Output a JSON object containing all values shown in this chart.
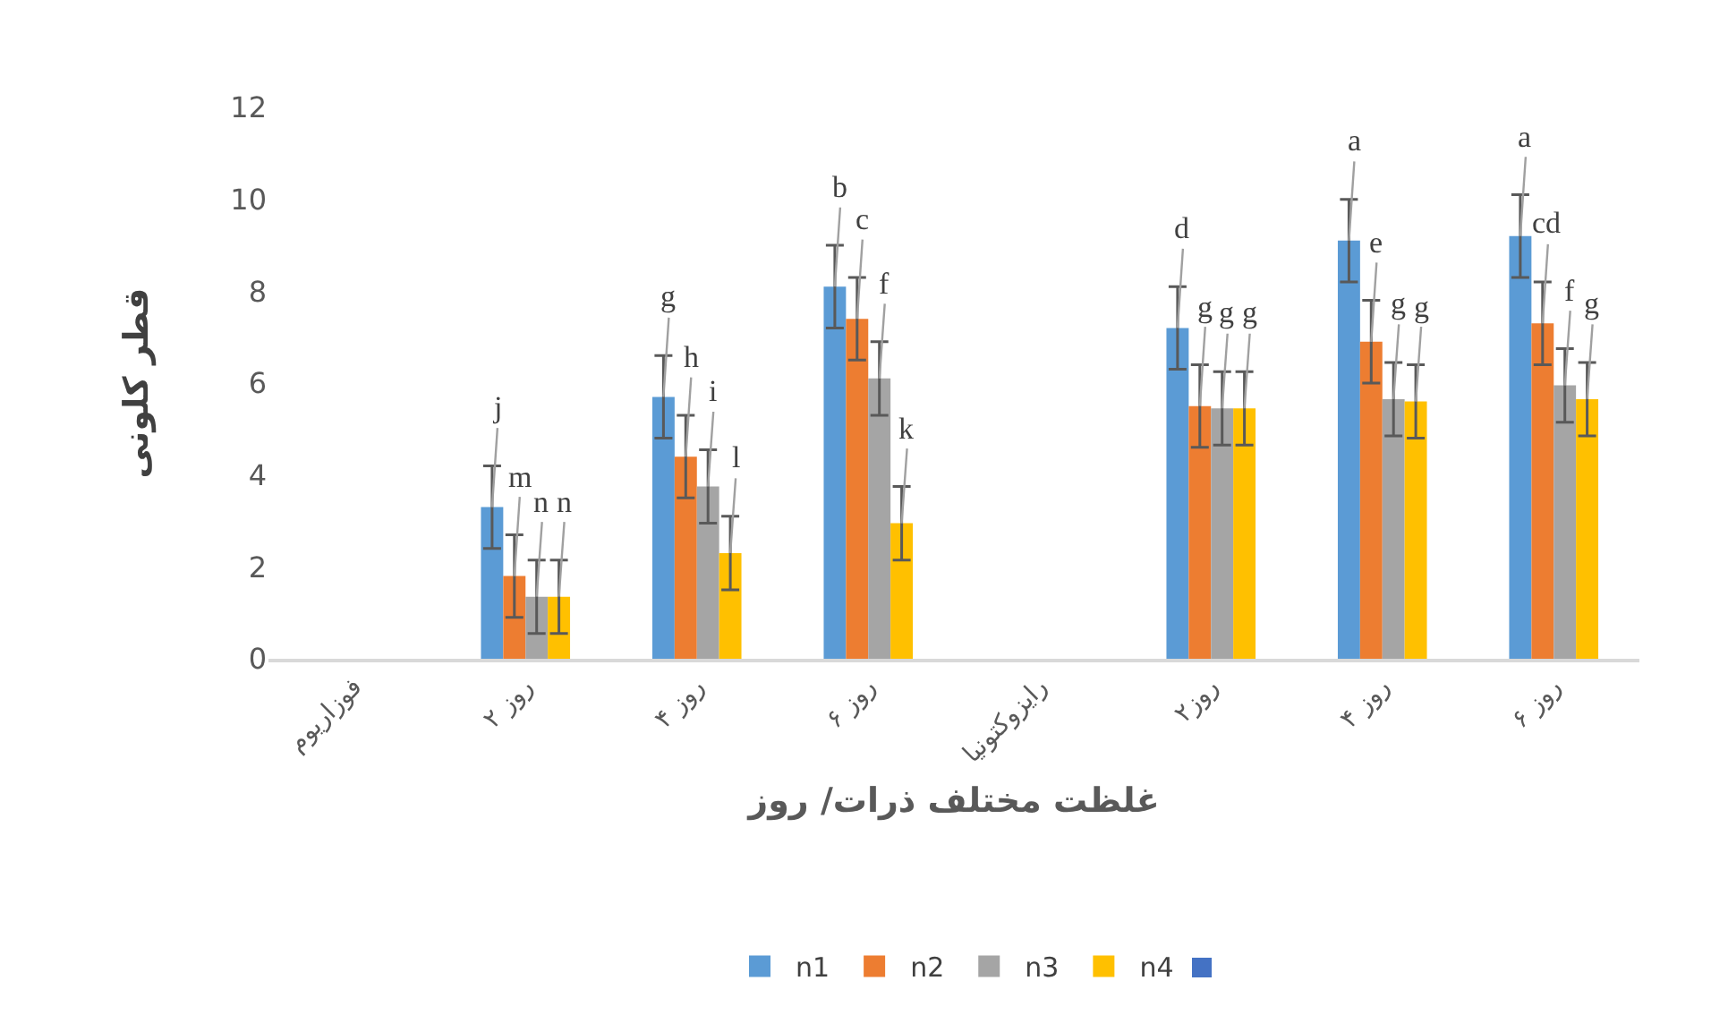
{
  "chart_data": {
    "type": "bar",
    "xlabel": "غلظت مختلف ذرات/ روز",
    "ylabel": "قطر کلونی",
    "categories": [
      "فوزاریوم",
      "۲ روز",
      "۴ روز",
      "۶ روز",
      "رایزوکتونیا",
      "۲روز",
      "۴ روز",
      "۶ روز"
    ],
    "ylim": [
      0,
      12
    ],
    "yticks": [
      0,
      2,
      4,
      6,
      8,
      10,
      12
    ],
    "grid": false,
    "legend": "bottom",
    "series": [
      {
        "name": "n1",
        "color": "#5b9bd5",
        "values": [
          null,
          3.3,
          5.7,
          8.1,
          null,
          7.2,
          9.1,
          9.2
        ],
        "errors": [
          null,
          0.9,
          0.9,
          0.9,
          null,
          0.9,
          0.9,
          0.9
        ],
        "value_labels": [
          null,
          "j",
          "g",
          "b",
          null,
          "d",
          "a",
          "a"
        ]
      },
      {
        "name": "n2",
        "color": "#ed7d31",
        "values": [
          null,
          1.8,
          4.4,
          7.4,
          null,
          5.5,
          6.9,
          7.3
        ],
        "errors": [
          null,
          0.9,
          0.9,
          0.9,
          null,
          0.9,
          0.9,
          0.9
        ],
        "value_labels": [
          null,
          "m",
          "h",
          "c",
          null,
          "g",
          "e",
          "cd"
        ]
      },
      {
        "name": "n3",
        "color": "#a5a5a5",
        "values": [
          null,
          1.35,
          3.75,
          6.1,
          null,
          5.45,
          5.65,
          5.95
        ],
        "errors": [
          null,
          0.8,
          0.8,
          0.8,
          null,
          0.8,
          0.8,
          0.8
        ],
        "value_labels": [
          null,
          "n",
          "i",
          "f",
          null,
          "g",
          "g",
          "f"
        ]
      },
      {
        "name": "n4",
        "color": "#ffc000",
        "values": [
          null,
          1.35,
          2.3,
          2.95,
          null,
          5.45,
          5.6,
          5.65
        ],
        "errors": [
          null,
          0.8,
          0.8,
          0.8,
          null,
          0.8,
          0.8,
          0.8
        ],
        "value_labels": [
          null,
          "n",
          "l",
          "k",
          null,
          "g",
          "g",
          "g"
        ]
      }
    ]
  }
}
